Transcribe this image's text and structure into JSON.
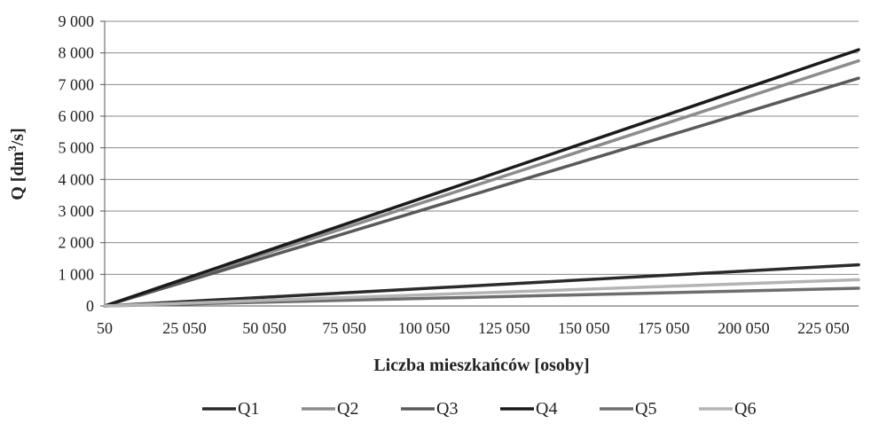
{
  "chart_data": {
    "type": "line",
    "title": "",
    "xlabel": "Liczba mieszkańców [osoby]",
    "ylabel_main": "Q [dm",
    "ylabel_sup": "3",
    "ylabel_tail": "/s]",
    "ylabel": "Q [dm³/s]",
    "xlim": [
      50,
      236050
    ],
    "ylim": [
      0,
      9000
    ],
    "x_ticks": [
      50,
      25050,
      50050,
      75050,
      100050,
      125050,
      150050,
      175050,
      200050,
      225050
    ],
    "x_tick_labels": [
      "50",
      "25 050",
      "50 050",
      "75 050",
      "100 050",
      "125 050",
      "150 050",
      "175 050",
      "200 050",
      "225 050"
    ],
    "y_ticks": [
      0,
      1000,
      2000,
      3000,
      4000,
      5000,
      6000,
      7000,
      8000,
      9000
    ],
    "y_tick_labels": [
      "0",
      "1 000",
      "2 000",
      "3 000",
      "4 000",
      "5 000",
      "6 000",
      "7 000",
      "8 000",
      "9 000"
    ],
    "grid": "horizontal",
    "legend_position": "bottom",
    "series": [
      {
        "name": "Q1",
        "color": "#2b2b2b",
        "x": [
          50,
          236050
        ],
        "y": [
          0,
          1300
        ]
      },
      {
        "name": "Q2",
        "color": "#8c8c8c",
        "x": [
          50,
          236050
        ],
        "y": [
          0,
          7750
        ]
      },
      {
        "name": "Q3",
        "color": "#5a5a5a",
        "x": [
          50,
          236050
        ],
        "y": [
          0,
          7200
        ]
      },
      {
        "name": "Q4",
        "color": "#1a1a1a",
        "x": [
          50,
          236050
        ],
        "y": [
          0,
          8100
        ]
      },
      {
        "name": "Q5",
        "color": "#6e6e6e",
        "x": [
          50,
          236050
        ],
        "y": [
          0,
          560
        ]
      },
      {
        "name": "Q6",
        "color": "#b4b4b4",
        "x": [
          50,
          236050
        ],
        "y": [
          0,
          830
        ]
      }
    ]
  }
}
